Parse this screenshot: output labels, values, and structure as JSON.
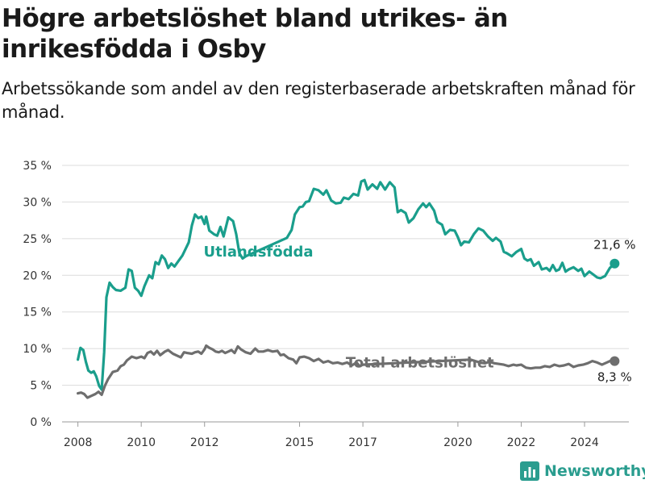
{
  "title": "Högre arbetslöshet bland utrikes- än inrikesfödda i Osby",
  "subtitle": "Arbetssökande som andel av den registerbaserade arbetskraften månad för månad.",
  "brand": {
    "name": "Newsworthy",
    "icon": "bar-chart-logo-icon",
    "color": "#2a9d8f"
  },
  "chart_data": {
    "type": "line",
    "title": "Högre arbetslöshet bland utrikes- än inrikesfödda i Osby",
    "subtitle": "Arbetssökande som andel av den registerbaserade arbetskraften månad för månad.",
    "xlim": [
      2007.5,
      2025.4
    ],
    "ylim": [
      0,
      35
    ],
    "y_ticks": [
      0,
      5,
      10,
      15,
      20,
      25,
      30,
      35
    ],
    "y_tick_labels": [
      "0 %",
      "5 %",
      "10 %",
      "15 %",
      "20 %",
      "25 %",
      "30 %",
      "35 %"
    ],
    "x_ticks": [
      2008,
      2010,
      2012,
      2015,
      2017,
      2020,
      2022,
      2024
    ],
    "x_tick_labels": [
      "2008",
      "2010",
      "2012",
      "2015",
      "2017",
      "2020",
      "2022",
      "2024"
    ],
    "grid": "horizontal",
    "legend": "inline labels",
    "series": [
      {
        "name": "Utlandsfödda",
        "color": "#1a9e8c",
        "end_label": "21,6 %",
        "last_value": 21.6,
        "inline_label_position": [
          2013.7,
          23.2
        ],
        "points": [
          [
            2008.0,
            8.5
          ],
          [
            2008.08,
            10.1
          ],
          [
            2008.17,
            9.8
          ],
          [
            2008.25,
            8.2
          ],
          [
            2008.33,
            7.0
          ],
          [
            2008.42,
            6.7
          ],
          [
            2008.5,
            6.9
          ],
          [
            2008.58,
            6.2
          ],
          [
            2008.67,
            4.9
          ],
          [
            2008.75,
            4.4
          ],
          [
            2008.83,
            9.5
          ],
          [
            2008.9,
            17.0
          ],
          [
            2009.0,
            19.0
          ],
          [
            2009.1,
            18.4
          ],
          [
            2009.2,
            18.0
          ],
          [
            2009.35,
            17.9
          ],
          [
            2009.5,
            18.3
          ],
          [
            2009.6,
            20.8
          ],
          [
            2009.7,
            20.6
          ],
          [
            2009.8,
            18.3
          ],
          [
            2009.9,
            17.9
          ],
          [
            2010.0,
            17.2
          ],
          [
            2010.1,
            18.5
          ],
          [
            2010.25,
            20.0
          ],
          [
            2010.35,
            19.6
          ],
          [
            2010.45,
            21.8
          ],
          [
            2010.55,
            21.5
          ],
          [
            2010.65,
            22.7
          ],
          [
            2010.75,
            22.2
          ],
          [
            2010.85,
            21.0
          ],
          [
            2010.95,
            21.6
          ],
          [
            2011.05,
            21.2
          ],
          [
            2011.2,
            22.1
          ],
          [
            2011.3,
            22.7
          ],
          [
            2011.4,
            23.6
          ],
          [
            2011.5,
            24.5
          ],
          [
            2011.6,
            26.8
          ],
          [
            2011.7,
            28.3
          ],
          [
            2011.8,
            27.8
          ],
          [
            2011.9,
            28.0
          ],
          [
            2012.0,
            27.0
          ],
          [
            2012.05,
            28.0
          ],
          [
            2012.15,
            26.1
          ],
          [
            2012.3,
            25.6
          ],
          [
            2012.4,
            25.4
          ],
          [
            2012.5,
            26.6
          ],
          [
            2012.6,
            25.3
          ],
          [
            2012.75,
            27.9
          ],
          [
            2012.9,
            27.4
          ],
          [
            2013.0,
            25.6
          ],
          [
            2013.1,
            23.0
          ],
          [
            2013.2,
            22.3
          ],
          [
            2013.3,
            22.6
          ],
          [
            2014.6,
            25.1
          ],
          [
            2014.75,
            26.2
          ],
          [
            2014.85,
            28.3
          ],
          [
            2015.0,
            29.3
          ],
          [
            2015.1,
            29.4
          ],
          [
            2015.2,
            30.0
          ],
          [
            2015.3,
            30.1
          ],
          [
            2015.45,
            31.8
          ],
          [
            2015.6,
            31.6
          ],
          [
            2015.75,
            31.0
          ],
          [
            2015.85,
            31.6
          ],
          [
            2016.0,
            30.2
          ],
          [
            2016.15,
            29.8
          ],
          [
            2016.3,
            29.9
          ],
          [
            2016.4,
            30.6
          ],
          [
            2016.55,
            30.4
          ],
          [
            2016.7,
            31.1
          ],
          [
            2016.85,
            30.9
          ],
          [
            2016.95,
            32.8
          ],
          [
            2017.05,
            33.0
          ],
          [
            2017.15,
            31.7
          ],
          [
            2017.3,
            32.4
          ],
          [
            2017.45,
            31.8
          ],
          [
            2017.55,
            32.7
          ],
          [
            2017.7,
            31.7
          ],
          [
            2017.85,
            32.7
          ],
          [
            2018.0,
            32.0
          ],
          [
            2018.1,
            28.6
          ],
          [
            2018.2,
            28.9
          ],
          [
            2018.35,
            28.5
          ],
          [
            2018.45,
            27.2
          ],
          [
            2018.6,
            27.8
          ],
          [
            2018.75,
            29.0
          ],
          [
            2018.9,
            29.8
          ],
          [
            2019.0,
            29.3
          ],
          [
            2019.1,
            29.8
          ],
          [
            2019.25,
            28.8
          ],
          [
            2019.35,
            27.3
          ],
          [
            2019.5,
            26.9
          ],
          [
            2019.6,
            25.6
          ],
          [
            2019.75,
            26.2
          ],
          [
            2019.9,
            26.1
          ],
          [
            2020.0,
            25.2
          ],
          [
            2020.1,
            24.1
          ],
          [
            2020.2,
            24.6
          ],
          [
            2020.35,
            24.5
          ],
          [
            2020.5,
            25.6
          ],
          [
            2020.65,
            26.4
          ],
          [
            2020.8,
            26.1
          ],
          [
            2020.95,
            25.3
          ],
          [
            2021.1,
            24.7
          ],
          [
            2021.2,
            25.1
          ],
          [
            2021.35,
            24.6
          ],
          [
            2021.45,
            23.2
          ],
          [
            2021.55,
            23.0
          ],
          [
            2021.7,
            22.6
          ],
          [
            2021.85,
            23.2
          ],
          [
            2022.0,
            23.6
          ],
          [
            2022.1,
            22.3
          ],
          [
            2022.2,
            22.0
          ],
          [
            2022.3,
            22.2
          ],
          [
            2022.4,
            21.3
          ],
          [
            2022.55,
            21.8
          ],
          [
            2022.65,
            20.8
          ],
          [
            2022.8,
            21.0
          ],
          [
            2022.9,
            20.6
          ],
          [
            2023.0,
            21.4
          ],
          [
            2023.1,
            20.6
          ],
          [
            2023.2,
            20.8
          ],
          [
            2023.3,
            21.7
          ],
          [
            2023.4,
            20.5
          ],
          [
            2023.5,
            20.8
          ],
          [
            2023.65,
            21.1
          ],
          [
            2023.8,
            20.6
          ],
          [
            2023.9,
            20.9
          ],
          [
            2024.0,
            19.9
          ],
          [
            2024.15,
            20.5
          ],
          [
            2024.25,
            20.2
          ],
          [
            2024.4,
            19.7
          ],
          [
            2024.5,
            19.6
          ],
          [
            2024.65,
            19.9
          ],
          [
            2024.8,
            21.0
          ],
          [
            2024.95,
            21.6
          ]
        ]
      },
      {
        "name": "Total arbetslöshet",
        "color": "#6e6e6e",
        "end_label": "8,3 %",
        "last_value": 8.3,
        "inline_label_position": [
          2018.8,
          8.1
        ],
        "points": [
          [
            2008.0,
            3.9
          ],
          [
            2008.1,
            4.0
          ],
          [
            2008.2,
            3.8
          ],
          [
            2008.3,
            3.3
          ],
          [
            2008.4,
            3.5
          ],
          [
            2008.55,
            3.8
          ],
          [
            2008.65,
            4.1
          ],
          [
            2008.75,
            3.7
          ],
          [
            2008.85,
            4.9
          ],
          [
            2008.95,
            5.8
          ],
          [
            2009.1,
            6.8
          ],
          [
            2009.25,
            7.0
          ],
          [
            2009.35,
            7.6
          ],
          [
            2009.45,
            7.8
          ],
          [
            2009.55,
            8.4
          ],
          [
            2009.7,
            8.9
          ],
          [
            2009.85,
            8.7
          ],
          [
            2010.0,
            8.9
          ],
          [
            2010.1,
            8.7
          ],
          [
            2010.2,
            9.4
          ],
          [
            2010.3,
            9.6
          ],
          [
            2010.4,
            9.2
          ],
          [
            2010.5,
            9.7
          ],
          [
            2010.6,
            9.1
          ],
          [
            2010.75,
            9.6
          ],
          [
            2010.85,
            9.8
          ],
          [
            2011.0,
            9.3
          ],
          [
            2011.15,
            9.0
          ],
          [
            2011.25,
            8.8
          ],
          [
            2011.35,
            9.5
          ],
          [
            2011.45,
            9.4
          ],
          [
            2011.6,
            9.3
          ],
          [
            2011.7,
            9.5
          ],
          [
            2011.8,
            9.6
          ],
          [
            2011.9,
            9.3
          ],
          [
            2012.0,
            9.9
          ],
          [
            2012.05,
            10.4
          ],
          [
            2012.15,
            10.1
          ],
          [
            2012.25,
            9.9
          ],
          [
            2012.35,
            9.6
          ],
          [
            2012.45,
            9.5
          ],
          [
            2012.55,
            9.7
          ],
          [
            2012.65,
            9.4
          ],
          [
            2012.75,
            9.6
          ],
          [
            2012.85,
            9.8
          ],
          [
            2012.95,
            9.4
          ],
          [
            2013.05,
            10.3
          ],
          [
            2013.15,
            9.9
          ],
          [
            2013.3,
            9.5
          ],
          [
            2013.45,
            9.3
          ],
          [
            2013.6,
            10.0
          ],
          [
            2013.7,
            9.6
          ],
          [
            2013.85,
            9.6
          ],
          [
            2014.0,
            9.8
          ],
          [
            2014.15,
            9.6
          ],
          [
            2014.3,
            9.7
          ],
          [
            2014.4,
            9.1
          ],
          [
            2014.5,
            9.2
          ],
          [
            2014.65,
            8.7
          ],
          [
            2014.8,
            8.5
          ],
          [
            2014.9,
            8.0
          ],
          [
            2015.0,
            8.8
          ],
          [
            2015.15,
            8.9
          ],
          [
            2015.3,
            8.7
          ],
          [
            2015.45,
            8.3
          ],
          [
            2015.6,
            8.6
          ],
          [
            2015.75,
            8.1
          ],
          [
            2015.9,
            8.3
          ],
          [
            2016.05,
            8.0
          ],
          [
            2016.2,
            8.1
          ],
          [
            2016.35,
            7.9
          ],
          [
            2016.5,
            8.1
          ],
          [
            2016.65,
            7.7
          ],
          [
            2016.8,
            8.1
          ],
          [
            2016.9,
            7.6
          ],
          [
            2017.0,
            7.8
          ],
          [
            2020.4,
            8.5
          ],
          [
            2020.55,
            8.3
          ],
          [
            2020.7,
            8.1
          ],
          [
            2020.85,
            8.0
          ],
          [
            2021.0,
            8.2
          ],
          [
            2021.15,
            8.0
          ],
          [
            2021.3,
            7.9
          ],
          [
            2021.45,
            7.8
          ],
          [
            2021.6,
            7.6
          ],
          [
            2021.75,
            7.8
          ],
          [
            2021.85,
            7.7
          ],
          [
            2022.0,
            7.8
          ],
          [
            2022.15,
            7.4
          ],
          [
            2022.3,
            7.3
          ],
          [
            2022.45,
            7.4
          ],
          [
            2022.6,
            7.4
          ],
          [
            2022.75,
            7.6
          ],
          [
            2022.9,
            7.5
          ],
          [
            2023.05,
            7.8
          ],
          [
            2023.2,
            7.6
          ],
          [
            2023.35,
            7.7
          ],
          [
            2023.5,
            7.9
          ],
          [
            2023.65,
            7.5
          ],
          [
            2023.8,
            7.7
          ],
          [
            2023.95,
            7.8
          ],
          [
            2024.1,
            8.0
          ],
          [
            2024.25,
            8.3
          ],
          [
            2024.4,
            8.1
          ],
          [
            2024.55,
            7.8
          ],
          [
            2024.7,
            8.1
          ],
          [
            2024.85,
            8.4
          ],
          [
            2024.95,
            8.3
          ]
        ]
      }
    ]
  }
}
